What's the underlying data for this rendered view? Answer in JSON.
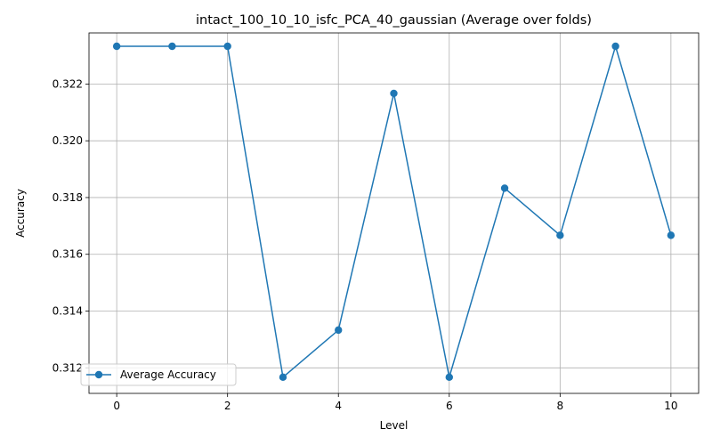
{
  "chart_data": {
    "type": "line",
    "title": "intact_100_10_10_isfc_PCA_40_gaussian (Average over folds)",
    "xlabel": "Level",
    "ylabel": "Accuracy",
    "xlim": [
      -0.5,
      10.5
    ],
    "ylim": [
      0.3111,
      0.3238
    ],
    "xticks": [
      0,
      2,
      4,
      6,
      8,
      10
    ],
    "xtick_labels": [
      "0",
      "2",
      "4",
      "6",
      "8",
      "10"
    ],
    "yticks": [
      0.312,
      0.314,
      0.316,
      0.318,
      0.32,
      0.322
    ],
    "ytick_labels": [
      "0.312",
      "0.314",
      "0.316",
      "0.318",
      "0.320",
      "0.322"
    ],
    "grid": true,
    "legend_position": "lower-left",
    "series": [
      {
        "name": "Average Accuracy",
        "color": "#1f77b4",
        "marker": "circle",
        "x": [
          0,
          1,
          2,
          3,
          4,
          5,
          6,
          7,
          8,
          9,
          10
        ],
        "y": [
          0.32333,
          0.32333,
          0.32333,
          0.31167,
          0.31333,
          0.32167,
          0.31167,
          0.31833,
          0.31667,
          0.32333,
          0.31667
        ]
      }
    ]
  }
}
